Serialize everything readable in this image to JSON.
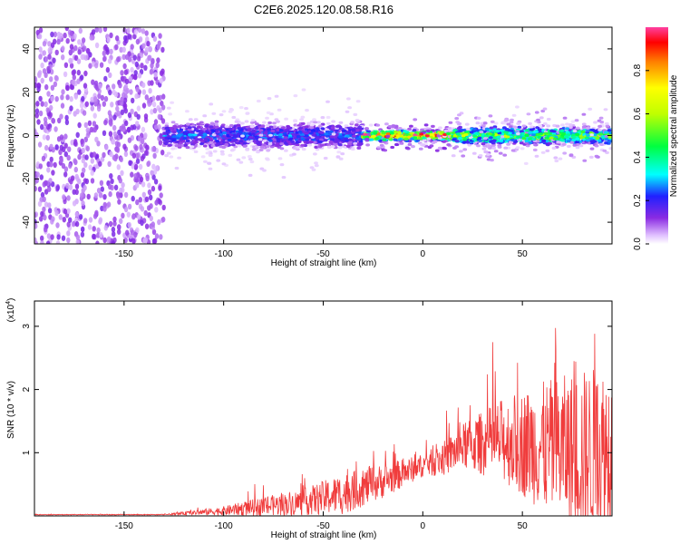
{
  "title": "C2E6.2025.120.08.58.R16",
  "colors": {
    "line": "#f03c3c",
    "axis": "#000000",
    "background": "#ffffff"
  },
  "chart_data": [
    {
      "type": "heatmap",
      "xlabel": "Height of straight line (km)",
      "ylabel": "Frequency (Hz)",
      "xlim": [
        -195,
        95
      ],
      "ylim": [
        -50,
        50
      ],
      "x_ticks": [
        -150,
        -100,
        -50,
        0,
        50
      ],
      "y_ticks": [
        -40,
        -20,
        0,
        20,
        40
      ],
      "colorbar": {
        "label": "Normalized spectral amplitude",
        "range": [
          0,
          1
        ],
        "ticks": [
          "0.0",
          "0.2",
          "0.4",
          "0.6",
          "0.8"
        ],
        "tick_values": [
          0,
          0.2,
          0.4,
          0.6,
          0.8
        ]
      },
      "regions": [
        {
          "x_range": [
            -195,
            -130
          ],
          "freq_spread": 50,
          "amplitude": 0.1,
          "note_type": "noise"
        },
        {
          "x_range": [
            -130,
            -30
          ],
          "freq_spread": 8,
          "amplitude": 0.25
        },
        {
          "x_range": [
            -30,
            15
          ],
          "freq_spread": 3,
          "amplitude": 0.9
        },
        {
          "x_range": [
            15,
            95
          ],
          "freq_spread": 5,
          "amplitude": 0.55
        }
      ]
    },
    {
      "type": "line",
      "xlabel": "Height of straight line (km)",
      "ylabel": "SNR (10 * v/v)",
      "y_multiplier_label": "(x10",
      "y_multiplier_exp": "4",
      "xlim": [
        -195,
        95
      ],
      "ylim": [
        0,
        3.4
      ],
      "x_ticks": [
        -150,
        -100,
        -50,
        0,
        50
      ],
      "y_ticks": [
        1,
        2,
        3
      ],
      "envelope": {
        "x": [
          -195,
          -130,
          -120,
          -100,
          -80,
          -60,
          -40,
          -20,
          0,
          10,
          20,
          40,
          60,
          80,
          95
        ],
        "base": [
          0.02,
          0.02,
          0.04,
          0.08,
          0.15,
          0.22,
          0.35,
          0.55,
          0.8,
          0.9,
          1.1,
          1.2,
          1.1,
          1.0,
          1.0
        ],
        "amp": [
          0.01,
          0.01,
          0.04,
          0.12,
          0.25,
          0.35,
          0.55,
          0.45,
          0.3,
          0.45,
          0.6,
          1.1,
          1.7,
          2.2,
          2.4
        ]
      }
    }
  ]
}
